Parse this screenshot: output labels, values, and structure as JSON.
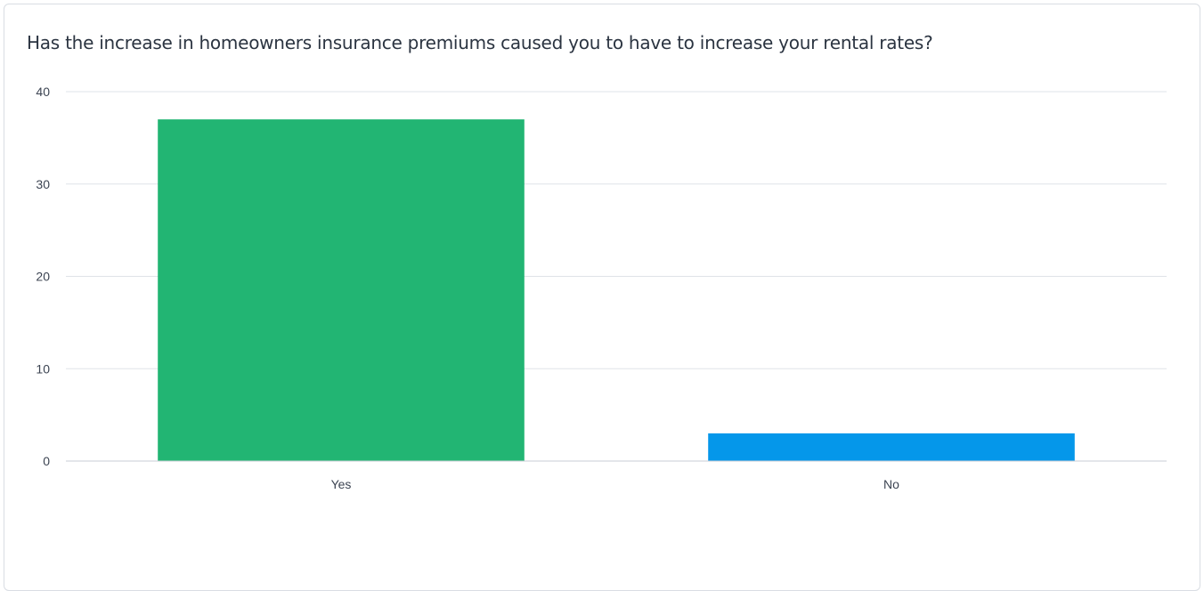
{
  "chart_data": {
    "type": "bar",
    "title": "Has the increase in homeowners insurance premiums caused you to have to increase your rental rates?",
    "categories": [
      "Yes",
      "No"
    ],
    "values": [
      37,
      3
    ],
    "bar_colors": [
      "#22b573",
      "#0597ea"
    ],
    "ylim": [
      0,
      40
    ],
    "yticks": [
      0,
      10,
      20,
      30,
      40
    ],
    "grid": true,
    "xlabel": "",
    "ylabel": ""
  },
  "colors": {
    "gridline": "#dfe3e8",
    "baseline": "#c9ced6",
    "text": "#3c4452",
    "title": "#2b3441"
  }
}
